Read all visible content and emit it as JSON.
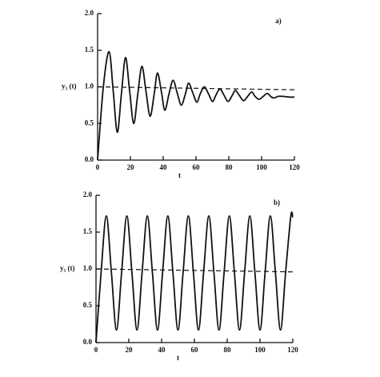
{
  "chart_data": [
    {
      "type": "line",
      "panel_label": "a)",
      "xlabel": "t",
      "ylabel": "y₃ (t)",
      "xlim": [
        0,
        120
      ],
      "xticks": [
        0,
        20,
        40,
        60,
        80,
        100,
        120
      ],
      "ylim": [
        0,
        2
      ],
      "yticks": [
        {
          "value": 0,
          "label": "0.0"
        },
        {
          "value": 0.5,
          "label": "0.5"
        },
        {
          "value": 1,
          "label": "1.0"
        },
        {
          "value": 1.5,
          "label": "1.5"
        },
        {
          "value": 2,
          "label": "2.0"
        }
      ],
      "series": [
        {
          "color": "#111111",
          "dash": false,
          "x": [
            0,
            3.5,
            7,
            9.5,
            12,
            14.5,
            17,
            19.5,
            22,
            24.5,
            27,
            29.5,
            32,
            34.5,
            36.5,
            39,
            41,
            43.5,
            46,
            48.5,
            51,
            53.5,
            55.5,
            58,
            60.5,
            62.5,
            65,
            67.5,
            70,
            72,
            74.5,
            77,
            79.5,
            82,
            84,
            86.5,
            89,
            91.5,
            94,
            96,
            98.5,
            101,
            103.5,
            106,
            108,
            110,
            113,
            117,
            120
          ],
          "values": [
            0,
            1.0,
            1.48,
            0.95,
            0.38,
            0.9,
            1.4,
            0.95,
            0.5,
            0.9,
            1.28,
            0.94,
            0.6,
            0.9,
            1.19,
            0.92,
            0.68,
            0.9,
            1.09,
            0.92,
            0.75,
            0.9,
            1.05,
            0.92,
            0.79,
            0.9,
            1.0,
            0.91,
            0.8,
            0.88,
            0.97,
            0.89,
            0.8,
            0.88,
            0.95,
            0.88,
            0.81,
            0.87,
            0.93,
            0.87,
            0.83,
            0.87,
            0.91,
            0.86,
            0.85,
            0.87,
            0.87,
            0.86,
            0.86
          ]
        },
        {
          "color": "#111111",
          "dash": true,
          "x": [
            0,
            120
          ],
          "values": [
            1.0,
            0.96
          ]
        }
      ]
    },
    {
      "type": "line",
      "panel_label": "b)",
      "xlabel": "t",
      "ylabel": "y₅ (t)",
      "xlim": [
        0,
        120
      ],
      "xticks": [
        0,
        20,
        40,
        60,
        80,
        100,
        120
      ],
      "ylim": [
        0,
        2
      ],
      "yticks": [
        {
          "value": 0,
          "label": "0.0"
        },
        {
          "value": 0.5,
          "label": "0.5"
        },
        {
          "value": 1,
          "label": "1.0"
        },
        {
          "value": 1.5,
          "label": "1.5"
        },
        {
          "value": 2,
          "label": "2.0"
        }
      ],
      "series": [
        {
          "color": "#111111",
          "dash": false,
          "x": [
            0,
            3.1,
            6.3,
            9.4,
            12.5,
            15.6,
            18.8,
            21.9,
            25,
            28.1,
            31.3,
            34.4,
            37.5,
            40.6,
            43.8,
            46.9,
            50,
            53.1,
            56.3,
            59.4,
            62.5,
            65.6,
            68.8,
            71.9,
            75,
            78.1,
            81.3,
            84.4,
            87.5,
            90.6,
            93.8,
            96.9,
            100,
            103.1,
            106.3,
            109.4,
            112.5,
            115.6,
            118.8,
            120
          ],
          "values": [
            0,
            0.95,
            1.72,
            0.95,
            0.17,
            0.95,
            1.72,
            0.95,
            0.17,
            0.95,
            1.72,
            0.95,
            0.17,
            0.95,
            1.72,
            0.95,
            0.17,
            0.95,
            1.72,
            0.95,
            0.17,
            0.95,
            1.72,
            0.95,
            0.17,
            0.95,
            1.72,
            0.95,
            0.17,
            0.95,
            1.72,
            0.95,
            0.17,
            0.95,
            1.72,
            0.95,
            0.17,
            0.95,
            1.72,
            1.7
          ]
        },
        {
          "color": "#111111",
          "dash": true,
          "x": [
            0,
            120
          ],
          "values": [
            1.0,
            0.96
          ]
        }
      ]
    }
  ]
}
